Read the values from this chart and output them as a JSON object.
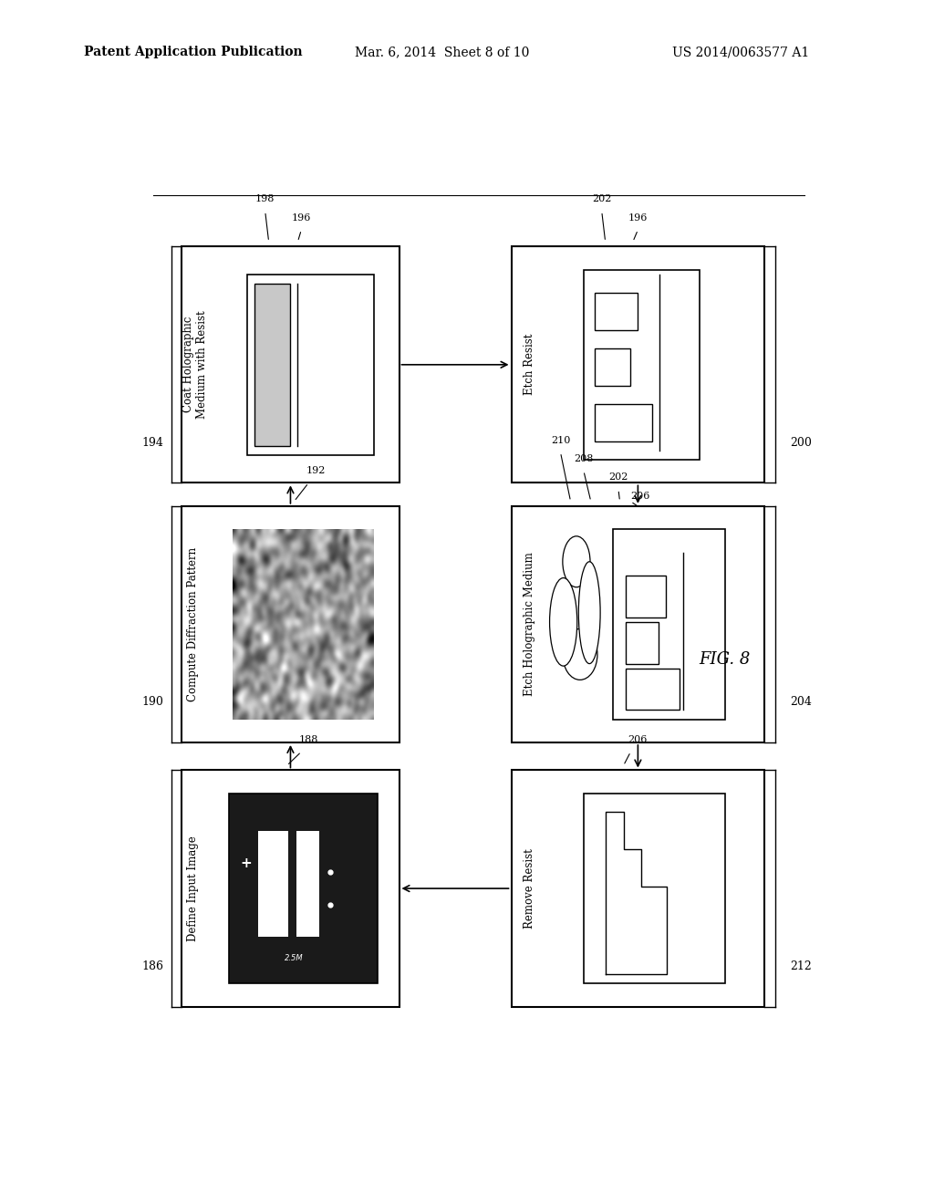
{
  "title_left": "Patent Application Publication",
  "title_mid": "Mar. 6, 2014  Sheet 8 of 10",
  "title_right": "US 2014/0063577 A1",
  "fig_label": "FIG. 8",
  "bg_color": "#ffffff"
}
